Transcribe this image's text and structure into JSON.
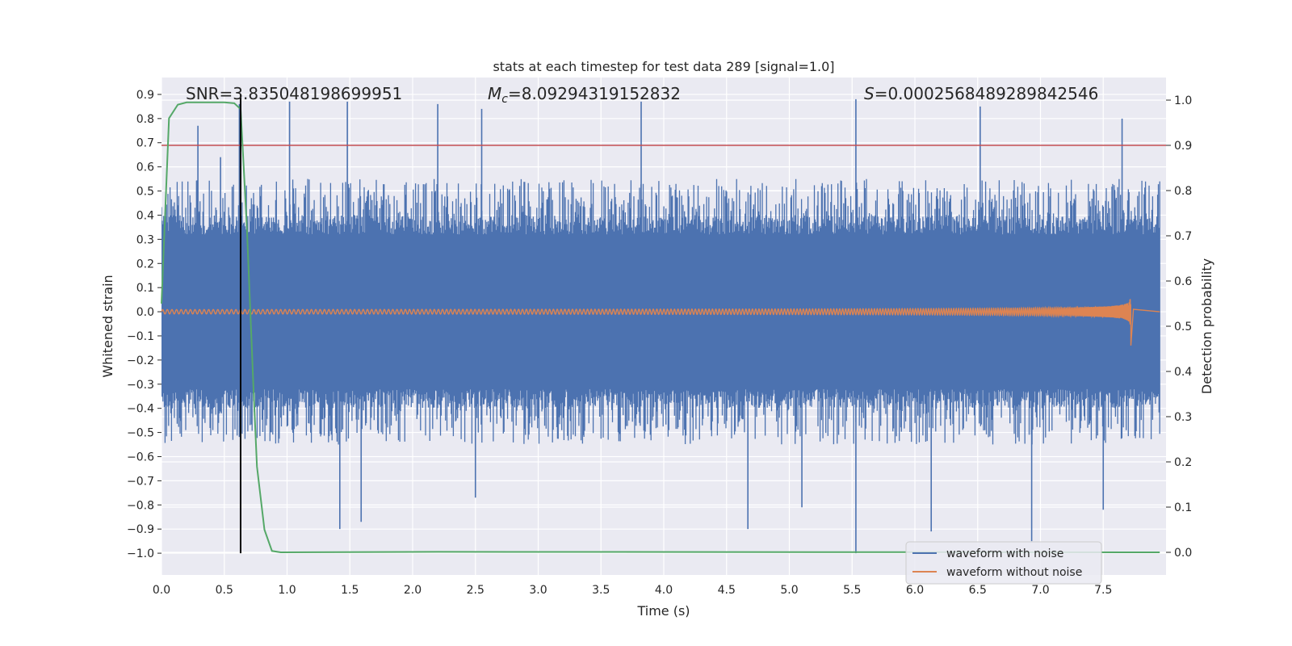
{
  "chart_data": {
    "type": "line",
    "title": "stats at each timestep for test data 289 [signal=1.0]",
    "xlabel": "Time (s)",
    "ylabel": "Whitened strain",
    "y2label": "Detection probability",
    "xlim": [
      0.0,
      8.0
    ],
    "ylim": [
      -1.09,
      0.97
    ],
    "y2lim": [
      -0.05,
      1.05
    ],
    "xticks": [
      0.0,
      0.5,
      1.0,
      1.5,
      2.0,
      2.5,
      3.0,
      3.5,
      4.0,
      4.5,
      5.0,
      5.5,
      6.0,
      6.5,
      7.0,
      7.5
    ],
    "xtick_labels": [
      "0.0",
      "0.5",
      "1.0",
      "1.5",
      "2.0",
      "2.5",
      "3.0",
      "3.5",
      "4.0",
      "4.5",
      "5.0",
      "5.5",
      "6.0",
      "6.5",
      "7.0",
      "7.5"
    ],
    "yticks": [
      0.9,
      0.8,
      0.7,
      0.6,
      0.5,
      0.4,
      0.3,
      0.2,
      0.1,
      0.0,
      -0.1,
      -0.2,
      -0.3,
      -0.4,
      -0.5,
      -0.6,
      -0.7,
      -0.8,
      -0.9,
      -1.0
    ],
    "ytick_labels": [
      "0.9",
      "0.8",
      "0.7",
      "0.6",
      "0.5",
      "0.4",
      "0.3",
      "0.2",
      "0.1",
      "0.0",
      "−0.1",
      "−0.2",
      "−0.3",
      "−0.4",
      "−0.5",
      "−0.6",
      "−0.7",
      "−0.8",
      "−0.9",
      "−1.0"
    ],
    "y2ticks": [
      1.0,
      0.9,
      0.8,
      0.7,
      0.6,
      0.5,
      0.4,
      0.3,
      0.2,
      0.1,
      0.0
    ],
    "y2tick_labels": [
      "1.0",
      "0.9",
      "0.8",
      "0.7",
      "0.6",
      "0.5",
      "0.4",
      "0.3",
      "0.2",
      "0.1",
      "0.0"
    ],
    "annotations": {
      "snr": "SNR=3.835048198699951",
      "mc_symbol": "M",
      "mc_sub": "c",
      "mc_value": "=8.09294319152832",
      "s_symbol": "S",
      "s_value": "=0.0002568489289842546"
    },
    "legend": {
      "placement": "lower-right",
      "entries": [
        "waveform with noise",
        "waveform without noise"
      ]
    },
    "threshold_prob": 0.9,
    "detection_time": 0.63,
    "prob_points": [
      [
        0.0,
        0.55
      ],
      [
        0.06,
        0.96
      ],
      [
        0.13,
        0.99
      ],
      [
        0.2,
        0.995
      ],
      [
        0.35,
        0.995
      ],
      [
        0.5,
        0.995
      ],
      [
        0.58,
        0.993
      ],
      [
        0.63,
        0.98
      ],
      [
        0.68,
        0.72
      ],
      [
        0.73,
        0.38
      ],
      [
        0.76,
        0.19
      ],
      [
        0.82,
        0.05
      ],
      [
        0.88,
        0.003
      ],
      [
        0.95,
        0.0
      ],
      [
        2.2,
        0.001
      ],
      [
        7.95,
        0.0
      ]
    ],
    "noisy_peaks": [
      [
        0.29,
        0.77
      ],
      [
        0.62,
        0.86
      ],
      [
        1.02,
        0.87
      ],
      [
        1.48,
        0.87
      ],
      [
        2.2,
        0.86
      ],
      [
        2.55,
        0.84
      ],
      [
        3.82,
        0.87
      ],
      [
        5.53,
        0.88
      ],
      [
        6.52,
        0.85
      ],
      [
        7.65,
        0.8
      ],
      [
        0.47,
        0.64
      ],
      [
        1.42,
        -0.9
      ],
      [
        1.59,
        -0.87
      ],
      [
        2.5,
        -0.77
      ],
      [
        5.53,
        -1.0
      ],
      [
        6.13,
        -0.91
      ],
      [
        4.67,
        -0.9
      ],
      [
        5.1,
        -0.81
      ],
      [
        6.93,
        -0.95
      ],
      [
        7.5,
        -0.82
      ]
    ],
    "noise_band": {
      "base": 0.32,
      "spike_p95": 0.55
    },
    "clean_waveform": {
      "label": "waveform without noise",
      "chirp_peak_time": 7.72,
      "max_amplitude": 0.11,
      "min_amplitude": -0.14
    },
    "colors": {
      "noisy": "#4c72b0",
      "clean": "#dd8452",
      "probability": "#55a868",
      "threshold": "#c44e52",
      "detection_line": "#000000",
      "axes_bg": "#eaeaf2",
      "grid": "#ffffff"
    }
  }
}
